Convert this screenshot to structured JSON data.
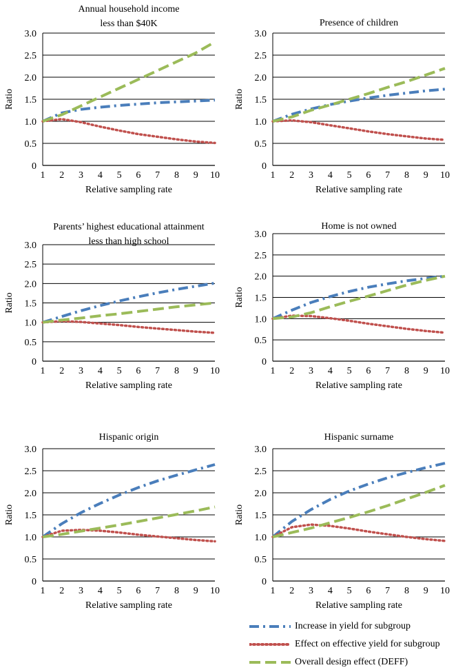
{
  "figure_colors": {
    "increase_yield": "#4a7ebb",
    "effective_yield": "#c0504d",
    "deff": "#9bbb59"
  },
  "legend": [
    {
      "key": "increase_yield",
      "label": "Increase in yield for subgroup",
      "style": "dash-dot",
      "icon": "dash-dot-line-icon"
    },
    {
      "key": "effective_yield",
      "label": "Effect on effective yield for subgroup",
      "style": "dotted",
      "icon": "dotted-line-icon"
    },
    {
      "key": "deff",
      "label": "Overall design effect (DEFF)",
      "style": "dashed",
      "icon": "dashed-line-icon"
    }
  ],
  "chart_data": [
    {
      "type": "line",
      "title": [
        "Annual household income",
        "less than $40K"
      ],
      "xlabel": "Relative sampling rate",
      "ylabel": "Ratio",
      "xlim": [
        1,
        10
      ],
      "ylim": [
        0,
        3.0
      ],
      "x_ticks": [
        "1",
        "2",
        "3",
        "4",
        "5",
        "6",
        "7",
        "8",
        "9",
        "10"
      ],
      "y_ticks": [
        "0",
        "0.5",
        "1.0",
        "1.5",
        "2.0",
        "2.5",
        "3.0"
      ],
      "grid": "horizontal",
      "x": [
        1,
        2,
        3,
        4,
        5,
        6,
        7,
        8,
        9,
        10
      ],
      "series": [
        {
          "name": "Increase in yield for subgroup",
          "key": "increase_yield",
          "values": [
            1.0,
            1.19,
            1.27,
            1.32,
            1.36,
            1.39,
            1.42,
            1.44,
            1.46,
            1.48
          ]
        },
        {
          "name": "Effect on effective yield for subgroup",
          "key": "effective_yield",
          "values": [
            1.0,
            1.05,
            0.98,
            0.88,
            0.79,
            0.71,
            0.65,
            0.59,
            0.54,
            0.51
          ]
        },
        {
          "name": "Overall design effect (DEFF)",
          "key": "deff",
          "values": [
            1.0,
            1.15,
            1.35,
            1.55,
            1.75,
            1.95,
            2.15,
            2.35,
            2.55,
            2.8
          ]
        }
      ]
    },
    {
      "type": "line",
      "title": [
        "Presence of children"
      ],
      "xlabel": "Relative sampling rate",
      "ylabel": "Ratio",
      "xlim": [
        1,
        10
      ],
      "ylim": [
        0,
        3.0
      ],
      "x_ticks": [
        "1",
        "2",
        "3",
        "4",
        "5",
        "6",
        "7",
        "8",
        "9",
        "10"
      ],
      "y_ticks": [
        "0",
        "0.5",
        "1.0",
        "1.5",
        "2.0",
        "2.5",
        "3.0"
      ],
      "grid": "horizontal",
      "x": [
        1,
        2,
        3,
        4,
        5,
        6,
        7,
        8,
        9,
        10
      ],
      "series": [
        {
          "name": "Increase in yield for subgroup",
          "key": "increase_yield",
          "values": [
            1.0,
            1.16,
            1.28,
            1.38,
            1.46,
            1.53,
            1.59,
            1.64,
            1.69,
            1.73
          ]
        },
        {
          "name": "Effect on effective yield for subgroup",
          "key": "effective_yield",
          "values": [
            1.0,
            1.02,
            0.98,
            0.91,
            0.84,
            0.77,
            0.71,
            0.66,
            0.61,
            0.58
          ]
        },
        {
          "name": "Overall design effect (DEFF)",
          "key": "deff",
          "values": [
            1.0,
            1.1,
            1.25,
            1.37,
            1.5,
            1.63,
            1.77,
            1.9,
            2.05,
            2.2
          ]
        }
      ]
    },
    {
      "type": "line",
      "title": [
        "Parents’ highest educational attainment",
        "less than high school"
      ],
      "xlabel": "Relative sampling rate",
      "ylabel": "Ratio",
      "xlim": [
        1,
        10
      ],
      "ylim": [
        0,
        3.0
      ],
      "x_ticks": [
        "1",
        "2",
        "3",
        "4",
        "5",
        "6",
        "7",
        "8",
        "9",
        "10"
      ],
      "y_ticks": [
        "0",
        "0.5",
        "1.0",
        "1.5",
        "2.0",
        "2.5",
        "3.0"
      ],
      "grid": "horizontal",
      "x": [
        1,
        2,
        3,
        4,
        5,
        6,
        7,
        8,
        9,
        10
      ],
      "series": [
        {
          "name": "Increase in yield for subgroup",
          "key": "increase_yield",
          "values": [
            1.0,
            1.15,
            1.3,
            1.43,
            1.55,
            1.66,
            1.76,
            1.85,
            1.93,
            2.01
          ]
        },
        {
          "name": "Effect on effective yield for subgroup",
          "key": "effective_yield",
          "values": [
            1.0,
            1.03,
            1.01,
            0.97,
            0.93,
            0.88,
            0.84,
            0.8,
            0.76,
            0.73
          ]
        },
        {
          "name": "Overall design effect (DEFF)",
          "key": "deff",
          "values": [
            1.0,
            1.06,
            1.11,
            1.17,
            1.22,
            1.28,
            1.34,
            1.4,
            1.45,
            1.5
          ]
        }
      ]
    },
    {
      "type": "line",
      "title": [
        "Home is not owned"
      ],
      "xlabel": "Relative sampling rate",
      "ylabel": "Ratio",
      "xlim": [
        1,
        10
      ],
      "ylim": [
        0,
        3.0
      ],
      "x_ticks": [
        "1",
        "2",
        "3",
        "4",
        "5",
        "6",
        "7",
        "8",
        "9",
        "10"
      ],
      "y_ticks": [
        "0",
        "0.5",
        "1.0",
        "1.5",
        "2.0",
        "2.5",
        "3.0"
      ],
      "grid": "horizontal",
      "x": [
        1,
        2,
        3,
        4,
        5,
        6,
        7,
        8,
        9,
        10
      ],
      "series": [
        {
          "name": "Increase in yield for subgroup",
          "key": "increase_yield",
          "values": [
            1.0,
            1.2,
            1.38,
            1.52,
            1.64,
            1.74,
            1.82,
            1.89,
            1.95,
            2.0
          ]
        },
        {
          "name": "Effect on effective yield for subgroup",
          "key": "effective_yield",
          "values": [
            1.0,
            1.07,
            1.06,
            1.01,
            0.95,
            0.88,
            0.82,
            0.76,
            0.71,
            0.67
          ]
        },
        {
          "name": "Overall design effect (DEFF)",
          "key": "deff",
          "values": [
            1.0,
            1.04,
            1.14,
            1.28,
            1.41,
            1.53,
            1.66,
            1.79,
            1.9,
            2.0
          ]
        }
      ]
    },
    {
      "type": "line",
      "title": [
        "Hispanic origin"
      ],
      "xlabel": "Relative sampling rate",
      "ylabel": "Ratio",
      "xlim": [
        1,
        10
      ],
      "ylim": [
        0,
        3.0
      ],
      "x_ticks": [
        "1",
        "2",
        "3",
        "4",
        "5",
        "6",
        "7",
        "8",
        "9",
        "10"
      ],
      "y_ticks": [
        "0",
        "0.5",
        "1.0",
        "1.5",
        "2.0",
        "2.5",
        "3.0"
      ],
      "grid": "horizontal",
      "x": [
        1,
        2,
        3,
        4,
        5,
        6,
        7,
        8,
        9,
        10
      ],
      "series": [
        {
          "name": "Increase in yield for subgroup",
          "key": "increase_yield",
          "values": [
            1.0,
            1.3,
            1.55,
            1.76,
            1.95,
            2.12,
            2.27,
            2.4,
            2.52,
            2.64
          ]
        },
        {
          "name": "Effect on effective yield for subgroup",
          "key": "effective_yield",
          "values": [
            1.0,
            1.14,
            1.16,
            1.14,
            1.1,
            1.05,
            1.01,
            0.97,
            0.93,
            0.9
          ]
        },
        {
          "name": "Overall design effect (DEFF)",
          "key": "deff",
          "values": [
            1.0,
            1.06,
            1.13,
            1.2,
            1.27,
            1.35,
            1.43,
            1.51,
            1.59,
            1.68
          ]
        }
      ]
    },
    {
      "type": "line",
      "title": [
        "Hispanic surname"
      ],
      "xlabel": "Relative sampling rate",
      "ylabel": "Ratio",
      "xlim": [
        1,
        10
      ],
      "ylim": [
        0,
        3.0
      ],
      "x_ticks": [
        "1",
        "2",
        "3",
        "4",
        "5",
        "6",
        "7",
        "8",
        "9",
        "10"
      ],
      "y_ticks": [
        "0",
        "0.5",
        "1.0",
        "1.5",
        "2.0",
        "2.5",
        "3.0"
      ],
      "grid": "horizontal",
      "x": [
        1,
        2,
        3,
        4,
        5,
        6,
        7,
        8,
        9,
        10
      ],
      "series": [
        {
          "name": "Increase in yield for subgroup",
          "key": "increase_yield",
          "values": [
            1.0,
            1.35,
            1.62,
            1.85,
            2.04,
            2.2,
            2.34,
            2.46,
            2.57,
            2.67
          ]
        },
        {
          "name": "Effect on effective yield for subgroup",
          "key": "effective_yield",
          "values": [
            1.0,
            1.22,
            1.28,
            1.25,
            1.19,
            1.12,
            1.06,
            1.0,
            0.95,
            0.91
          ]
        },
        {
          "name": "Overall design effect (DEFF)",
          "key": "deff",
          "values": [
            1.0,
            1.1,
            1.2,
            1.32,
            1.44,
            1.57,
            1.71,
            1.86,
            2.01,
            2.17
          ]
        }
      ]
    }
  ]
}
